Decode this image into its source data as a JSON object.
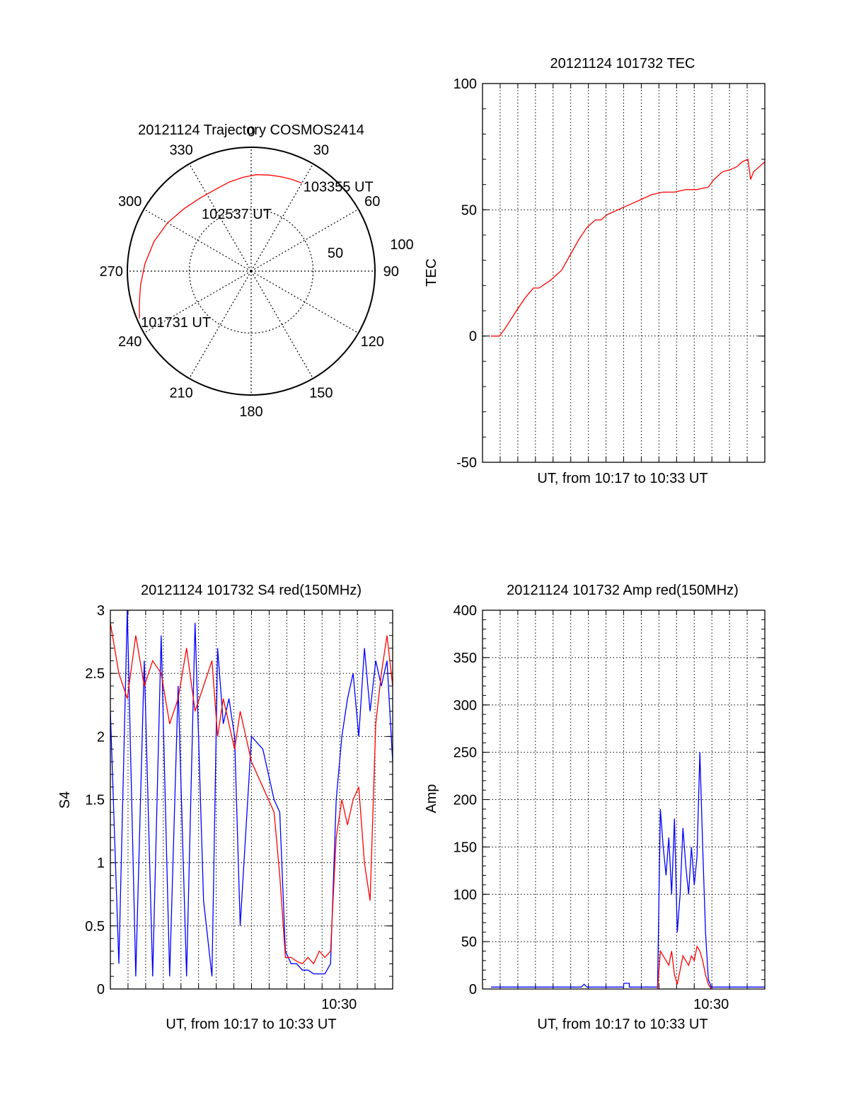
{
  "chart_data": [
    {
      "type": "polar",
      "title": "20121124 Trajectory COSMOS2414",
      "angle_labels": [
        "0",
        "30",
        "60",
        "90",
        "120",
        "150",
        "180",
        "210",
        "240",
        "270",
        "300",
        "330"
      ],
      "radius_labels": [
        "50",
        "100"
      ],
      "rlim": [
        0,
        100
      ],
      "grid": true,
      "series": [
        {
          "color": "#ff0000",
          "points": [
            {
              "azimuth": 247,
              "radius": 98
            },
            {
              "azimuth": 254,
              "radius": 94
            },
            {
              "azimuth": 263,
              "radius": 90
            },
            {
              "azimuth": 274,
              "radius": 86
            },
            {
              "azimuth": 287,
              "radius": 82
            },
            {
              "azimuth": 300,
              "radius": 78
            },
            {
              "azimuth": 313,
              "radius": 74
            },
            {
              "azimuth": 325,
              "radius": 72
            },
            {
              "azimuth": 336,
              "radius": 72
            },
            {
              "azimuth": 346,
              "radius": 74
            },
            {
              "azimuth": 355,
              "radius": 76
            },
            {
              "azimuth": 3,
              "radius": 78
            },
            {
              "azimuth": 11,
              "radius": 79
            },
            {
              "azimuth": 18,
              "radius": 80
            },
            {
              "azimuth": 24,
              "radius": 81
            },
            {
              "azimuth": 30,
              "radius": 82
            }
          ]
        }
      ],
      "annotations": [
        {
          "text": "101731 UT",
          "azimuth": 247,
          "radius": 98
        },
        {
          "text": "102537 UT",
          "azimuth": 320,
          "radius": 64
        },
        {
          "text": "103355 UT",
          "azimuth": 30,
          "radius": 82
        }
      ]
    },
    {
      "type": "line",
      "title": "20121124 101732 TEC",
      "xlabel": "UT, from 10:17 to 10:33 UT",
      "ylabel": "TEC",
      "ylim": [
        -50,
        100
      ],
      "yticks": [
        "-50",
        "0",
        "50",
        "100"
      ],
      "xlim": [
        0,
        1
      ],
      "grid": true,
      "series": [
        {
          "color": "#ff0000",
          "x": [
            0.03,
            0.06,
            0.08,
            0.12,
            0.15,
            0.18,
            0.2,
            0.24,
            0.28,
            0.31,
            0.34,
            0.37,
            0.4,
            0.42,
            0.44,
            0.46,
            0.48,
            0.52,
            0.56,
            0.6,
            0.64,
            0.68,
            0.72,
            0.76,
            0.8,
            0.82,
            0.85,
            0.88,
            0.9,
            0.92,
            0.94,
            0.95,
            0.96,
            0.98,
            1.0
          ],
          "y": [
            0,
            0,
            3,
            10,
            15,
            19,
            19,
            22,
            26,
            32,
            38,
            43,
            46,
            46,
            48,
            49,
            50,
            52,
            54,
            56,
            57,
            57,
            58,
            58,
            59,
            62,
            65,
            66,
            67,
            69,
            70,
            62,
            65,
            67,
            69
          ]
        }
      ]
    },
    {
      "type": "line",
      "title": "20121124 101732 S4 red(150MHz)",
      "xlabel": "UT, from 10:17 to 10:33 UT",
      "ylabel": "S4",
      "ylim": [
        0,
        3
      ],
      "yticks": [
        "0",
        "0.5",
        "1",
        "1.5",
        "2",
        "2.5",
        "3"
      ],
      "xticks": [
        "10:30"
      ],
      "xlim": [
        0,
        1
      ],
      "grid": true,
      "series": [
        {
          "color": "#0000ff",
          "x": [
            0.0,
            0.03,
            0.06,
            0.09,
            0.12,
            0.15,
            0.18,
            0.21,
            0.24,
            0.27,
            0.3,
            0.33,
            0.36,
            0.38,
            0.4,
            0.42,
            0.44,
            0.46,
            0.5,
            0.54,
            0.58,
            0.6,
            0.62,
            0.64,
            0.66,
            0.68,
            0.7,
            0.72,
            0.74,
            0.76,
            0.78,
            0.8,
            0.82,
            0.84,
            0.86,
            0.88,
            0.9,
            0.92,
            0.94,
            0.96,
            0.98,
            1.0
          ],
          "y": [
            2.2,
            0.2,
            3.0,
            0.1,
            2.6,
            0.1,
            2.8,
            0.1,
            2.4,
            0.1,
            2.9,
            0.7,
            0.1,
            2.7,
            2.1,
            2.3,
            2.0,
            0.5,
            2.0,
            1.9,
            1.5,
            1.4,
            0.3,
            0.2,
            0.2,
            0.15,
            0.15,
            0.12,
            0.12,
            0.12,
            0.2,
            1.5,
            2.0,
            2.3,
            2.5,
            2.0,
            2.7,
            2.2,
            2.6,
            2.4,
            2.6,
            1.8
          ]
        },
        {
          "color": "#ff0000",
          "x": [
            0.0,
            0.03,
            0.06,
            0.09,
            0.12,
            0.15,
            0.18,
            0.21,
            0.24,
            0.27,
            0.3,
            0.33,
            0.36,
            0.38,
            0.4,
            0.42,
            0.44,
            0.46,
            0.5,
            0.54,
            0.58,
            0.6,
            0.62,
            0.64,
            0.66,
            0.68,
            0.7,
            0.72,
            0.74,
            0.76,
            0.78,
            0.8,
            0.82,
            0.84,
            0.86,
            0.88,
            0.9,
            0.92,
            0.94,
            0.96,
            0.98,
            1.0
          ],
          "y": [
            2.9,
            2.5,
            2.3,
            2.8,
            2.4,
            2.6,
            2.5,
            2.1,
            2.3,
            2.7,
            2.2,
            2.4,
            2.6,
            2.0,
            2.3,
            2.1,
            1.9,
            2.2,
            1.8,
            1.6,
            1.4,
            0.9,
            0.25,
            0.25,
            0.22,
            0.2,
            0.25,
            0.2,
            0.3,
            0.25,
            0.3,
            1.2,
            1.5,
            1.3,
            1.5,
            1.6,
            1.0,
            0.7,
            2.1,
            2.5,
            2.8,
            2.4
          ]
        }
      ]
    },
    {
      "type": "line",
      "title": "20121124 101732 Amp red(150MHz)",
      "xlabel": "UT, from 10:17 to 10:33 UT",
      "ylabel": "Amp",
      "ylim": [
        0,
        400
      ],
      "yticks": [
        "0",
        "50",
        "100",
        "150",
        "200",
        "250",
        "300",
        "350",
        "400"
      ],
      "xticks": [
        "10:30"
      ],
      "xlim": [
        0,
        1
      ],
      "grid": true,
      "series": [
        {
          "color": "#0000ff",
          "x": [
            0.03,
            0.2,
            0.35,
            0.36,
            0.37,
            0.5,
            0.5,
            0.52,
            0.52,
            0.62,
            0.63,
            0.64,
            0.65,
            0.66,
            0.67,
            0.68,
            0.69,
            0.7,
            0.71,
            0.72,
            0.73,
            0.74,
            0.75,
            0.76,
            0.77,
            0.78,
            0.79,
            0.8,
            0.81,
            0.82,
            0.85,
            0.9,
            1.0
          ],
          "y": [
            2,
            2,
            2,
            5,
            2,
            2,
            6,
            6,
            2,
            2,
            190,
            150,
            120,
            160,
            100,
            180,
            60,
            100,
            170,
            130,
            100,
            150,
            110,
            140,
            250,
            150,
            60,
            10,
            2,
            2,
            2,
            2,
            2
          ]
        },
        {
          "color": "#ff0000",
          "x": [
            0.62,
            0.63,
            0.64,
            0.65,
            0.66,
            0.67,
            0.68,
            0.69,
            0.7,
            0.71,
            0.72,
            0.73,
            0.74,
            0.75,
            0.76,
            0.77,
            0.78,
            0.79,
            0.8,
            0.81
          ],
          "y": [
            0,
            40,
            35,
            30,
            25,
            40,
            15,
            5,
            20,
            35,
            30,
            25,
            35,
            30,
            45,
            40,
            30,
            15,
            5,
            0
          ]
        }
      ]
    }
  ]
}
